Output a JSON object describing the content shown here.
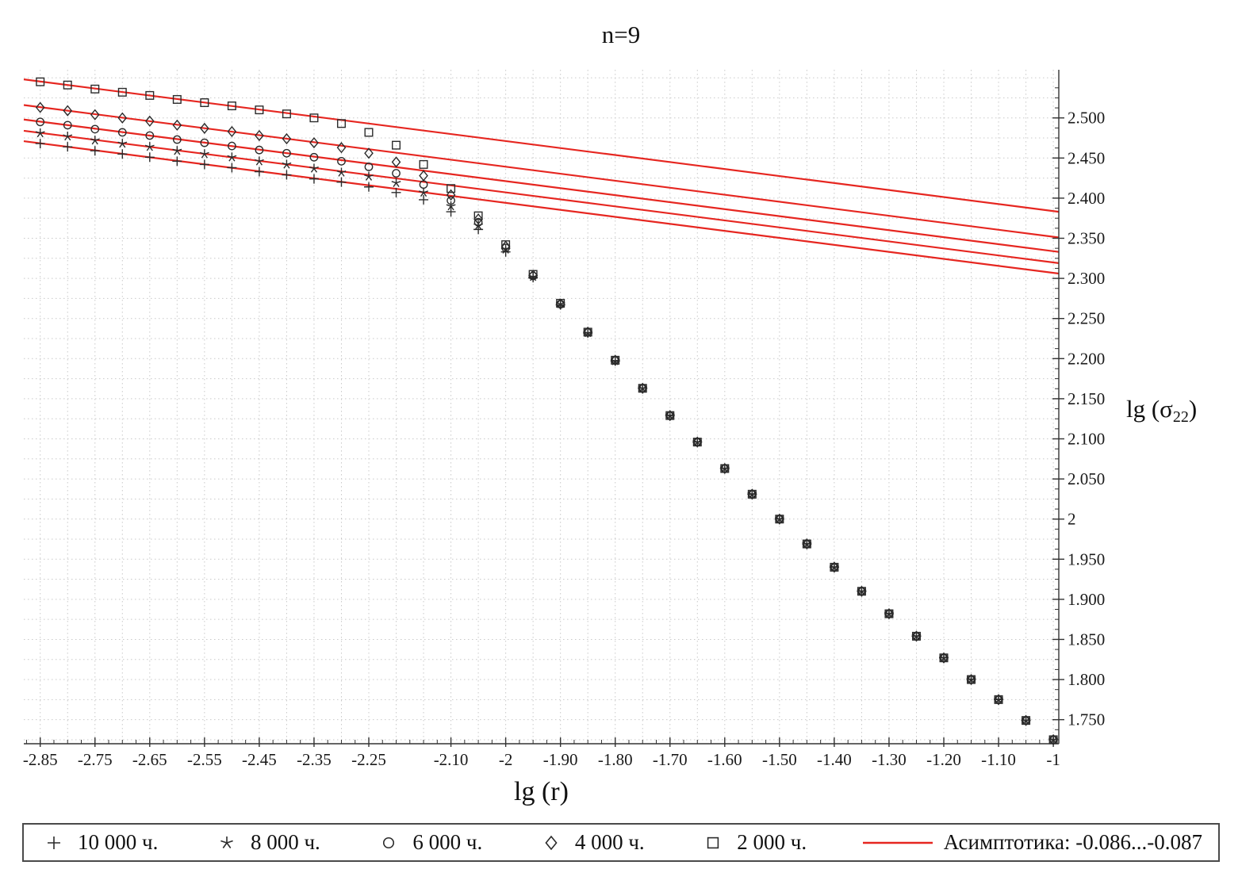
{
  "title": "n=9",
  "xlabel": "lg (r)",
  "ylabel": {
    "pre": "lg (σ",
    "sub": "22",
    "post": ")"
  },
  "colors": {
    "marker": "#2b2b2b",
    "grid": "#c9c9c9",
    "axis": "#333333"
  },
  "chart_data": {
    "type": "scatter",
    "x": [
      -2.85,
      -2.8,
      -2.75,
      -2.7,
      -2.65,
      -2.6,
      -2.55,
      -2.5,
      -2.45,
      -2.4,
      -2.35,
      -2.3,
      -2.25,
      -2.2,
      -2.15,
      -2.1,
      -2.05,
      -2.0,
      -1.95,
      -1.9,
      -1.85,
      -1.8,
      -1.75,
      -1.7,
      -1.65,
      -1.6,
      -1.55,
      -1.5,
      -1.45,
      -1.4,
      -1.35,
      -1.3,
      -1.25,
      -1.2,
      -1.15,
      -1.1,
      -1.05,
      -1.0
    ],
    "series": [
      {
        "name": "10 000 ч.",
        "marker": "plus",
        "values": [
          2.468,
          2.464,
          2.459,
          2.455,
          2.451,
          2.446,
          2.442,
          2.438,
          2.433,
          2.429,
          2.424,
          2.42,
          2.414,
          2.407,
          2.398,
          2.383,
          2.361,
          2.333,
          2.301,
          2.267,
          2.232,
          2.197,
          2.163,
          2.129,
          2.096,
          2.063,
          2.031,
          2.0,
          1.969,
          1.94,
          1.91,
          1.882,
          1.854,
          1.827,
          1.8,
          1.775,
          1.749,
          1.725
        ]
      },
      {
        "name": "8 000 ч.",
        "marker": "star",
        "values": [
          2.481,
          2.477,
          2.472,
          2.468,
          2.464,
          2.459,
          2.455,
          2.451,
          2.446,
          2.442,
          2.437,
          2.432,
          2.427,
          2.419,
          2.407,
          2.39,
          2.366,
          2.336,
          2.302,
          2.268,
          2.232,
          2.197,
          2.163,
          2.129,
          2.096,
          2.063,
          2.031,
          2.0,
          1.969,
          1.94,
          1.91,
          1.882,
          1.854,
          1.827,
          1.8,
          1.775,
          1.749,
          1.725
        ]
      },
      {
        "name": "6 000 ч.",
        "marker": "circle",
        "values": [
          2.495,
          2.491,
          2.486,
          2.482,
          2.478,
          2.473,
          2.469,
          2.465,
          2.46,
          2.456,
          2.451,
          2.446,
          2.439,
          2.431,
          2.417,
          2.397,
          2.37,
          2.338,
          2.303,
          2.268,
          2.233,
          2.198,
          2.163,
          2.129,
          2.096,
          2.063,
          2.031,
          2.0,
          1.969,
          1.94,
          1.91,
          1.882,
          1.854,
          1.827,
          1.8,
          1.775,
          1.749,
          1.725
        ]
      },
      {
        "name": "4 000 ч.",
        "marker": "diamond",
        "values": [
          2.513,
          2.509,
          2.504,
          2.5,
          2.496,
          2.491,
          2.487,
          2.483,
          2.478,
          2.474,
          2.469,
          2.463,
          2.456,
          2.445,
          2.428,
          2.404,
          2.374,
          2.34,
          2.304,
          2.268,
          2.233,
          2.198,
          2.163,
          2.129,
          2.096,
          2.063,
          2.031,
          2.0,
          1.969,
          1.94,
          1.91,
          1.882,
          1.854,
          1.827,
          1.8,
          1.775,
          1.749,
          1.725
        ]
      },
      {
        "name": "2 000 ч.",
        "marker": "square",
        "values": [
          2.545,
          2.541,
          2.536,
          2.532,
          2.528,
          2.523,
          2.519,
          2.515,
          2.51,
          2.505,
          2.5,
          2.493,
          2.482,
          2.466,
          2.442,
          2.412,
          2.378,
          2.342,
          2.305,
          2.269,
          2.233,
          2.198,
          2.163,
          2.129,
          2.096,
          2.063,
          2.031,
          2.0,
          1.969,
          1.94,
          1.91,
          1.882,
          1.854,
          1.827,
          1.8,
          1.775,
          1.749,
          1.725
        ]
      }
    ],
    "asymptotes": {
      "label": "Асимптотика: -0.086...-0.087",
      "color": "#e62620",
      "slope_range": [
        -0.086,
        -0.087
      ],
      "lines": [
        {
          "x": [
            -2.88,
            -0.99
          ],
          "y": [
            2.471,
            2.306
          ]
        },
        {
          "x": [
            -2.88,
            -0.99
          ],
          "y": [
            2.484,
            2.319
          ]
        },
        {
          "x": [
            -2.88,
            -0.99
          ],
          "y": [
            2.498,
            2.333
          ]
        },
        {
          "x": [
            -2.88,
            -0.99
          ],
          "y": [
            2.516,
            2.351
          ]
        },
        {
          "x": [
            -2.88,
            -0.99
          ],
          "y": [
            2.548,
            2.383
          ]
        }
      ]
    },
    "xlim": [
      -2.88,
      -0.99
    ],
    "ylim": [
      1.72,
      2.56
    ],
    "grid": true,
    "legend_position": "bottom",
    "x_ticks": [
      {
        "v": -2.85,
        "label": "-2.85"
      },
      {
        "v": -2.75,
        "label": "-2.75"
      },
      {
        "v": -2.65,
        "label": "-2.65"
      },
      {
        "v": -2.55,
        "label": "-2.55"
      },
      {
        "v": -2.45,
        "label": "-2.45"
      },
      {
        "v": -2.35,
        "label": "-2.35"
      },
      {
        "v": -2.25,
        "label": "-2.25"
      },
      {
        "v": -2.1,
        "label": "-2.10"
      },
      {
        "v": -2,
        "label": "-2"
      },
      {
        "v": -1.9,
        "label": "-1.90"
      },
      {
        "v": -1.8,
        "label": "-1.80"
      },
      {
        "v": -1.7,
        "label": "-1.70"
      },
      {
        "v": -1.6,
        "label": "-1.60"
      },
      {
        "v": -1.5,
        "label": "-1.50"
      },
      {
        "v": -1.4,
        "label": "-1.40"
      },
      {
        "v": -1.3,
        "label": "-1.30"
      },
      {
        "v": -1.2,
        "label": "-1.20"
      },
      {
        "v": -1.1,
        "label": "-1.10"
      },
      {
        "v": -1,
        "label": "-1"
      }
    ],
    "y_ticks": [
      {
        "v": 2.5,
        "label": "2.500"
      },
      {
        "v": 2.45,
        "label": "2.450"
      },
      {
        "v": 2.4,
        "label": "2.400"
      },
      {
        "v": 2.35,
        "label": "2.350"
      },
      {
        "v": 2.3,
        "label": "2.300"
      },
      {
        "v": 2.25,
        "label": "2.250"
      },
      {
        "v": 2.2,
        "label": "2.200"
      },
      {
        "v": 2.15,
        "label": "2.150"
      },
      {
        "v": 2.1,
        "label": "2.100"
      },
      {
        "v": 2.05,
        "label": "2.050"
      },
      {
        "v": 2.0,
        "label": "2"
      },
      {
        "v": 1.95,
        "label": "1.950"
      },
      {
        "v": 1.9,
        "label": "1.900"
      },
      {
        "v": 1.85,
        "label": "1.850"
      },
      {
        "v": 1.8,
        "label": "1.800"
      },
      {
        "v": 1.75,
        "label": "1.750"
      }
    ]
  }
}
